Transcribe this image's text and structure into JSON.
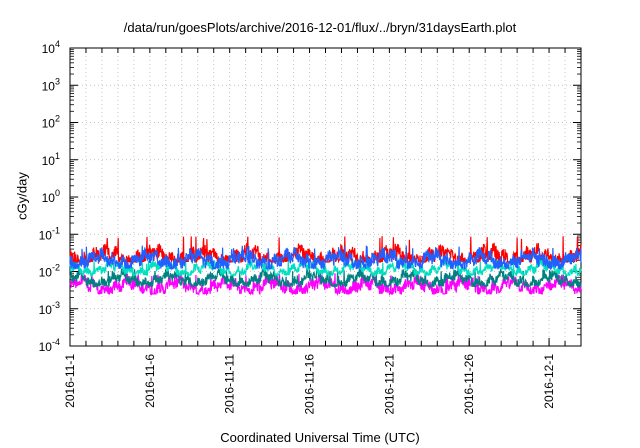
{
  "chart_data": {
    "type": "line",
    "title": "/data/run/goesPlots/archive/2016-12-01/flux/../bryn/31daysEarth.plot",
    "xlabel": "Coordinated Universal Time (UTC)",
    "ylabel": "cGy/day",
    "yscale": "log",
    "ylim": [
      0.0001,
      10000
    ],
    "y_ticks": [
      {
        "value": 0.0001,
        "base": "10",
        "exp": "-4"
      },
      {
        "value": 0.001,
        "base": "10",
        "exp": "-3"
      },
      {
        "value": 0.01,
        "base": "10",
        "exp": "-2"
      },
      {
        "value": 0.1,
        "base": "10",
        "exp": "-1"
      },
      {
        "value": 1,
        "base": "10",
        "exp": "0"
      },
      {
        "value": 10,
        "base": "10",
        "exp": "1"
      },
      {
        "value": 100,
        "base": "10",
        "exp": "2"
      },
      {
        "value": 1000,
        "base": "10",
        "exp": "3"
      },
      {
        "value": 10000,
        "base": "10",
        "exp": "4"
      }
    ],
    "xlim": [
      "2016-11-01",
      "2016-12-03"
    ],
    "x_ticks": [
      "2016-11-1",
      "2016-11-6",
      "2016-11-11",
      "2016-11-16",
      "2016-11-21",
      "2016-11-26",
      "2016-12-1"
    ],
    "x_tick_dates": [
      "2016-11-01",
      "2016-11-06",
      "2016-11-11",
      "2016-11-16",
      "2016-11-21",
      "2016-11-26",
      "2016-12-01"
    ],
    "grid": true,
    "series": [
      {
        "color": "#ff00ff",
        "typical": 0.004,
        "low": 0.0025,
        "high": 0.009,
        "sample_days": [
          1,
          3,
          5,
          7,
          9,
          11,
          13,
          15,
          17,
          19,
          21,
          23,
          25,
          27,
          29,
          31,
          33
        ],
        "sample_values": [
          0.004,
          0.0045,
          0.0035,
          0.004,
          0.005,
          0.004,
          0.0035,
          0.0045,
          0.004,
          0.004,
          0.0035,
          0.005,
          0.004,
          0.0045,
          0.004,
          0.0045,
          0.004
        ]
      },
      {
        "color": "#008080",
        "typical": 0.006,
        "low": 0.004,
        "high": 0.012,
        "sample_days": [
          1,
          3,
          5,
          7,
          9,
          11,
          13,
          15,
          17,
          19,
          21,
          23,
          25,
          27,
          29,
          31,
          33
        ],
        "sample_values": [
          0.006,
          0.007,
          0.006,
          0.0065,
          0.007,
          0.006,
          0.006,
          0.007,
          0.0065,
          0.006,
          0.006,
          0.007,
          0.006,
          0.0065,
          0.006,
          0.007,
          0.006
        ]
      },
      {
        "color": "#00e0c0",
        "typical": 0.012,
        "low": 0.008,
        "high": 0.02,
        "sample_days": [
          1,
          3,
          5,
          7,
          9,
          11,
          13,
          15,
          17,
          19,
          21,
          23,
          25,
          27,
          29,
          31,
          33
        ],
        "sample_values": [
          0.012,
          0.013,
          0.011,
          0.012,
          0.013,
          0.012,
          0.011,
          0.013,
          0.012,
          0.012,
          0.011,
          0.013,
          0.012,
          0.012,
          0.012,
          0.013,
          0.012
        ]
      },
      {
        "color": "#ff0000",
        "typical": 0.025,
        "low": 0.018,
        "high": 0.09,
        "sample_days": [
          1,
          3,
          5,
          7,
          9,
          11,
          13,
          15,
          17,
          19,
          21,
          23,
          25,
          27,
          29,
          31,
          33
        ],
        "sample_values": [
          0.028,
          0.03,
          0.025,
          0.05,
          0.027,
          0.025,
          0.03,
          0.045,
          0.026,
          0.028,
          0.05,
          0.026,
          0.025,
          0.027,
          0.026,
          0.08,
          0.027
        ]
      },
      {
        "color": "#2060ff",
        "typical": 0.02,
        "low": 0.012,
        "high": 0.05,
        "sample_days": [
          1,
          3,
          5,
          7,
          9,
          11,
          13,
          15,
          17,
          19,
          21,
          23,
          25,
          27,
          29,
          31,
          33
        ],
        "sample_values": [
          0.022,
          0.024,
          0.02,
          0.03,
          0.021,
          0.02,
          0.024,
          0.028,
          0.02,
          0.022,
          0.03,
          0.021,
          0.02,
          0.022,
          0.021,
          0.04,
          0.022
        ]
      }
    ]
  }
}
